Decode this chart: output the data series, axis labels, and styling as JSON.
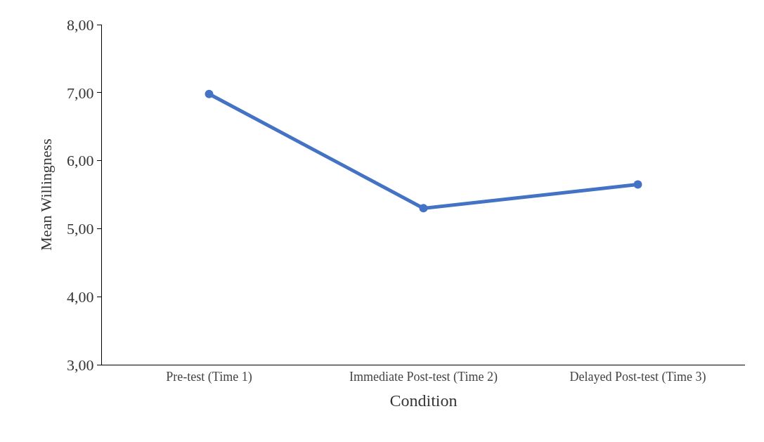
{
  "chart_data": {
    "type": "line",
    "xlabel": "Condition",
    "ylabel": "Mean Willingness",
    "categories": [
      "Pre-test (Time 1)",
      "Immediate Post-test (Time 2)",
      "Delayed Post-test (Time 3)"
    ],
    "series": [
      {
        "color": "#4472c4",
        "values": [
          6.98,
          5.3,
          5.65
        ]
      }
    ],
    "ylim": [
      3,
      8
    ],
    "yticks": [
      {
        "value": 3,
        "label": "3,00"
      },
      {
        "value": 4,
        "label": "4,00"
      },
      {
        "value": 5,
        "label": "5,00"
      },
      {
        "value": 6,
        "label": "6,00"
      },
      {
        "value": 7,
        "label": "7,00"
      },
      {
        "value": 8,
        "label": "8,00"
      }
    ],
    "marker": "circle",
    "line_style": "solid"
  }
}
